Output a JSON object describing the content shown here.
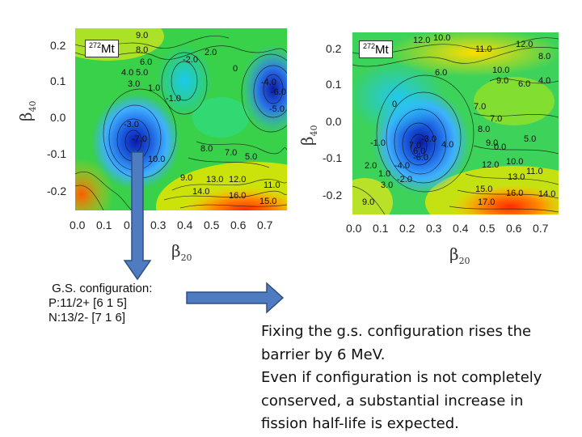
{
  "left_panel": {
    "nucleus_mass": "272",
    "nucleus_symbol": "Mt",
    "y_ticks": [
      "0.2",
      "0.1",
      "0.0",
      "-0.1",
      "-0.2"
    ],
    "x_ticks": [
      "0.0",
      "0.1",
      "0.2",
      "0.3",
      "0.4",
      "0.5",
      "0.6",
      "0.7"
    ],
    "x_label_main": "β",
    "x_label_sub": "20",
    "y_label_main": "β",
    "y_label_sub": "40",
    "contour_labels": [
      "9.0",
      "8.0",
      "6.0",
      "4.0",
      "5.0",
      "3.0",
      "1.0",
      "-2.0",
      "2.0",
      "0",
      "-1.0",
      "-4.0",
      "-6.0",
      "-5.0",
      "-3.0",
      "-7.0",
      "8.0",
      "7.0",
      "5.0",
      "9.0",
      "13.0",
      "12.0",
      "11.0",
      "14.0",
      "16.0",
      "15.0",
      "10.0"
    ]
  },
  "right_panel": {
    "nucleus_mass": "272",
    "nucleus_symbol": "Mt",
    "y_ticks": [
      "0.2",
      "0.1",
      "0.0",
      "-0.1",
      "-0.2"
    ],
    "x_ticks": [
      "0.0",
      "0.1",
      "0.2",
      "0.3",
      "0.4",
      "0.5",
      "0.6",
      "0.7"
    ],
    "x_label_main": "β",
    "x_label_sub": "20",
    "y_label_main": "β",
    "y_label_sub": "40",
    "contour_labels": [
      "12.0",
      "10.0",
      "11.0",
      "12.0",
      "8.0",
      "6.0",
      "10.0",
      "9.0",
      "6.0",
      "4.0",
      "0",
      "7.0",
      "8.0",
      "7.0",
      "-1.0",
      "-3.0",
      "7.0",
      "6.0",
      "4.0",
      "9.0",
      "5.0",
      "2.0",
      "1.0",
      "-4.0",
      "-6.0",
      "3.0",
      "-2.0",
      "12.0",
      "10.0",
      "13.0",
      "11.0",
      "15.0",
      "16.0",
      "14.0",
      "9.0",
      "17.0",
      "0.0"
    ]
  },
  "gs_configuration": {
    "line1": " G.S. configuration:",
    "line2": "P:11/2+ [6 1 5]",
    "line3": "N:13/2- [7 1 6]"
  },
  "note_lines": [
    "Fixing the g.s. configuration rises the",
    "barrier by 6 MeV.",
    "Even if configuration is not completely",
    "conserved, a substantial  increase in",
    "fission half-life is expected."
  ],
  "colors": {
    "arrow_fill": "#4f7bc0",
    "arrow_stroke": "#2f4f82"
  }
}
